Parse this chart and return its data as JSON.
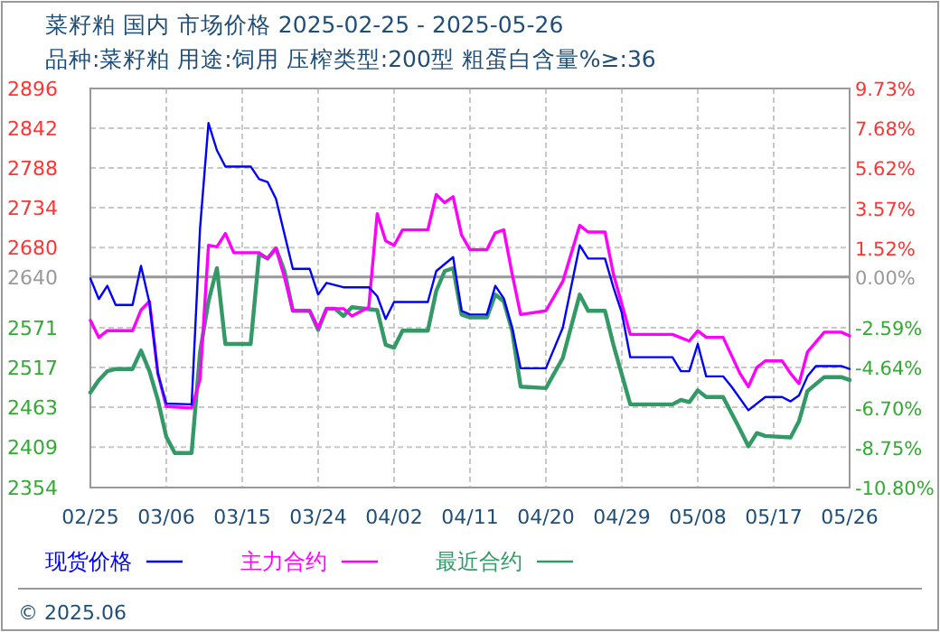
{
  "chart_data": {
    "type": "line",
    "title": "菜籽粕 国内 市场价格 2025-02-25 - 2025-05-26",
    "subtitle": "品种:菜籽粕 用途:饲用 压榨类型:200型 粗蛋白含量%≥:36",
    "xlim": [
      "2025-02-25",
      "2025-05-26"
    ],
    "xticks": [
      {
        "value": "2025-02-25",
        "label": "02/25"
      },
      {
        "value": "2025-03-06",
        "label": "03/06"
      },
      {
        "value": "2025-03-15",
        "label": "03/15"
      },
      {
        "value": "2025-03-24",
        "label": "03/24"
      },
      {
        "value": "2025-04-02",
        "label": "04/02"
      },
      {
        "value": "2025-04-11",
        "label": "04/11"
      },
      {
        "value": "2025-04-20",
        "label": "04/20"
      },
      {
        "value": "2025-04-29",
        "label": "04/29"
      },
      {
        "value": "2025-05-08",
        "label": "05/08"
      },
      {
        "value": "2025-05-17",
        "label": "05/17"
      },
      {
        "value": "2025-05-26",
        "label": "05/26"
      }
    ],
    "ylim": [
      2354,
      2896
    ],
    "yticks": [
      2896,
      2842,
      2788,
      2734,
      2680,
      2640,
      2571,
      2517,
      2463,
      2409,
      2354
    ],
    "y2lim": [
      -10.8,
      9.73
    ],
    "y2ticks": [
      {
        "value": 9.73,
        "label": "9.73%"
      },
      {
        "value": 7.68,
        "label": "7.68%"
      },
      {
        "value": 5.62,
        "label": "5.62%"
      },
      {
        "value": 3.57,
        "label": "3.57%"
      },
      {
        "value": 1.52,
        "label": "1.52%"
      },
      {
        "value": 0,
        "label": "0.00%"
      },
      {
        "value": -2.59,
        "label": "-2.59%"
      },
      {
        "value": -4.64,
        "label": "-4.64%"
      },
      {
        "value": -6.7,
        "label": "-6.70%"
      },
      {
        "value": -8.75,
        "label": "-8.75%"
      },
      {
        "value": -10.8,
        "label": "-10.80%"
      }
    ],
    "ref_lines": [
      {
        "axis": "y",
        "value": 2640,
        "color": "#999999"
      }
    ],
    "grid": true,
    "legend": "bottom",
    "line_style": "solid",
    "annotations": [
      "© 2025.06"
    ],
    "series": [
      {
        "name": "现货价格",
        "color": "#0000ff",
        "x": [
          "2025-02-25",
          "2025-02-26",
          "2025-02-27",
          "2025-02-28",
          "2025-03-02",
          "2025-03-03",
          "2025-03-04",
          "2025-03-05",
          "2025-03-06",
          "2025-03-09",
          "2025-03-10",
          "2025-03-11",
          "2025-03-12",
          "2025-03-13",
          "2025-03-16",
          "2025-03-17",
          "2025-03-18",
          "2025-03-19",
          "2025-03-21",
          "2025-03-23",
          "2025-03-24",
          "2025-03-25",
          "2025-03-27",
          "2025-03-30",
          "2025-03-31",
          "2025-04-01",
          "2025-04-02",
          "2025-04-06",
          "2025-04-07",
          "2025-04-09",
          "2025-04-10",
          "2025-04-11",
          "2025-04-13",
          "2025-04-14",
          "2025-04-15",
          "2025-04-16",
          "2025-04-17",
          "2025-04-20",
          "2025-04-22",
          "2025-04-24",
          "2025-04-25",
          "2025-04-27",
          "2025-04-28",
          "2025-04-29",
          "2025-04-30",
          "2025-05-05",
          "2025-05-06",
          "2025-05-07",
          "2025-05-08",
          "2025-05-09",
          "2025-05-11",
          "2025-05-12",
          "2025-05-14",
          "2025-05-16",
          "2025-05-18",
          "2025-05-19",
          "2025-05-20",
          "2025-05-21",
          "2025-05-22",
          "2025-05-25",
          "2025-05-26"
        ],
        "values": [
          2638,
          2610,
          2628,
          2602,
          2602,
          2655,
          2605,
          2509,
          2468,
          2467,
          2706,
          2849,
          2812,
          2790,
          2790,
          2773,
          2769,
          2746,
          2651,
          2651,
          2616,
          2632,
          2626,
          2626,
          2614,
          2583,
          2606,
          2606,
          2648,
          2667,
          2594,
          2589,
          2589,
          2628,
          2611,
          2571,
          2516,
          2516,
          2571,
          2683,
          2665,
          2665,
          2626,
          2591,
          2531,
          2531,
          2512,
          2512,
          2549,
          2505,
          2505,
          2491,
          2459,
          2477,
          2477,
          2471,
          2479,
          2505,
          2519,
          2519,
          2515
        ]
      },
      {
        "name": "主力合约",
        "color": "#ff00ff",
        "x": [
          "2025-02-25",
          "2025-02-26",
          "2025-02-27",
          "2025-03-02",
          "2025-03-03",
          "2025-03-04",
          "2025-03-05",
          "2025-03-06",
          "2025-03-09",
          "2025-03-10",
          "2025-03-11",
          "2025-03-12",
          "2025-03-13",
          "2025-03-14",
          "2025-03-17",
          "2025-03-18",
          "2025-03-19",
          "2025-03-20",
          "2025-03-21",
          "2025-03-23",
          "2025-03-24",
          "2025-03-25",
          "2025-03-27",
          "2025-03-28",
          "2025-03-30",
          "2025-03-31",
          "2025-04-01",
          "2025-04-02",
          "2025-04-03",
          "2025-04-06",
          "2025-04-07",
          "2025-04-08",
          "2025-04-09",
          "2025-04-10",
          "2025-04-11",
          "2025-04-13",
          "2025-04-14",
          "2025-04-15",
          "2025-04-16",
          "2025-04-17",
          "2025-04-20",
          "2025-04-22",
          "2025-04-24",
          "2025-04-25",
          "2025-04-27",
          "2025-04-28",
          "2025-04-30",
          "2025-05-05",
          "2025-05-07",
          "2025-05-08",
          "2025-05-09",
          "2025-05-11",
          "2025-05-13",
          "2025-05-14",
          "2025-05-15",
          "2025-05-16",
          "2025-05-18",
          "2025-05-19",
          "2025-05-20",
          "2025-05-21",
          "2025-05-23",
          "2025-05-25",
          "2025-05-26"
        ],
        "values": [
          2581,
          2558,
          2567,
          2567,
          2595,
          2607,
          2509,
          2464,
          2462,
          2501,
          2683,
          2681,
          2699,
          2673,
          2673,
          2665,
          2679,
          2640,
          2594,
          2594,
          2571,
          2597,
          2597,
          2587,
          2599,
          2726,
          2689,
          2683,
          2704,
          2704,
          2752,
          2741,
          2749,
          2697,
          2677,
          2677,
          2700,
          2704,
          2644,
          2589,
          2594,
          2634,
          2710,
          2701,
          2701,
          2644,
          2562,
          2562,
          2553,
          2567,
          2558,
          2558,
          2509,
          2491,
          2517,
          2526,
          2526,
          2509,
          2495,
          2538,
          2565,
          2565,
          2560
        ]
      },
      {
        "name": "最近合约",
        "color": "#339966",
        "x": [
          "2025-02-25",
          "2025-02-26",
          "2025-02-27",
          "2025-02-28",
          "2025-03-02",
          "2025-03-03",
          "2025-03-04",
          "2025-03-05",
          "2025-03-06",
          "2025-03-07",
          "2025-03-09",
          "2025-03-10",
          "2025-03-11",
          "2025-03-12",
          "2025-03-13",
          "2025-03-16",
          "2025-03-17",
          "2025-03-18",
          "2025-03-19",
          "2025-03-20",
          "2025-03-21",
          "2025-03-23",
          "2025-03-24",
          "2025-03-25",
          "2025-03-26",
          "2025-03-27",
          "2025-03-28",
          "2025-03-31",
          "2025-04-01",
          "2025-04-02",
          "2025-04-03",
          "2025-04-06",
          "2025-04-07",
          "2025-04-08",
          "2025-04-09",
          "2025-04-10",
          "2025-04-11",
          "2025-04-13",
          "2025-04-14",
          "2025-04-15",
          "2025-04-16",
          "2025-04-17",
          "2025-04-20",
          "2025-04-22",
          "2025-04-24",
          "2025-04-25",
          "2025-04-27",
          "2025-04-28",
          "2025-04-30",
          "2025-05-05",
          "2025-05-06",
          "2025-05-07",
          "2025-05-08",
          "2025-05-09",
          "2025-05-11",
          "2025-05-13",
          "2025-05-14",
          "2025-05-15",
          "2025-05-16",
          "2025-05-19",
          "2025-05-20",
          "2025-05-21",
          "2025-05-23",
          "2025-05-25",
          "2025-05-26"
        ],
        "values": [
          2483,
          2500,
          2512,
          2515,
          2515,
          2540,
          2512,
          2473,
          2423,
          2401,
          2401,
          2538,
          2607,
          2652,
          2549,
          2549,
          2671,
          2665,
          2679,
          2648,
          2594,
          2594,
          2568,
          2597,
          2597,
          2587,
          2599,
          2595,
          2548,
          2544,
          2567,
          2567,
          2621,
          2648,
          2652,
          2589,
          2585,
          2585,
          2616,
          2607,
          2567,
          2491,
          2489,
          2530,
          2616,
          2594,
          2594,
          2548,
          2467,
          2467,
          2473,
          2470,
          2486,
          2477,
          2477,
          2433,
          2410,
          2428,
          2424,
          2422,
          2444,
          2485,
          2504,
          2504,
          2500
        ]
      }
    ]
  }
}
